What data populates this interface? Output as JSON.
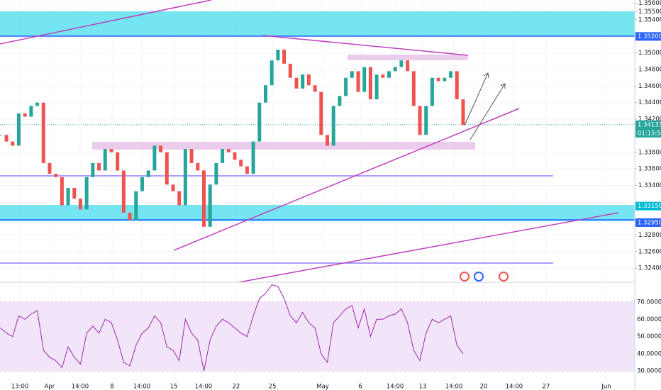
{
  "chart_data": {
    "type": "candlestick",
    "up_color": "#26a69a",
    "down_color": "#ef5350",
    "grid": true,
    "xlim": [
      -4.02,
      47.41
    ],
    "xticks": [
      {
        "value": -2.41,
        "label": "13:00"
      },
      {
        "value": 0,
        "label": "Apr"
      },
      {
        "value": 2.47,
        "label": "14:00"
      },
      {
        "value": 5.06,
        "label": "8"
      },
      {
        "value": 7.47,
        "label": "14:00"
      },
      {
        "value": 10.06,
        "label": "15"
      },
      {
        "value": 12.47,
        "label": "14:00"
      },
      {
        "value": 15.11,
        "label": "22"
      },
      {
        "value": 18.05,
        "label": "25"
      },
      {
        "value": 22.13,
        "label": "May"
      },
      {
        "value": 25.17,
        "label": "6"
      },
      {
        "value": 27.99,
        "label": "14:00"
      },
      {
        "value": 30.23,
        "label": "13"
      },
      {
        "value": 32.76,
        "label": "14:00"
      },
      {
        "value": 35.17,
        "label": "20"
      },
      {
        "value": 37.64,
        "label": "14:00"
      },
      {
        "value": 40.23,
        "label": "27"
      },
      {
        "value": 45.11,
        "label": "Jun"
      }
    ],
    "ylim": [
      1.3223,
      1.3564
    ],
    "yticks": [
      {
        "value": 1.356,
        "label": "1.35600"
      },
      {
        "value": 1.355,
        "label": "1.35500"
      },
      {
        "value": 1.354,
        "label": "1.35400"
      },
      {
        "value": 1.35,
        "label": "1.35000"
      },
      {
        "value": 1.348,
        "label": "1.34800"
      },
      {
        "value": 1.346,
        "label": "1.34600"
      },
      {
        "value": 1.344,
        "label": "1.34400"
      },
      {
        "value": 1.342,
        "label": "1.34200"
      },
      {
        "value": 1.338,
        "label": "1.33800"
      },
      {
        "value": 1.336,
        "label": "1.33600"
      },
      {
        "value": 1.334,
        "label": "1.33400"
      },
      {
        "value": 1.328,
        "label": "1.32800"
      },
      {
        "value": 1.326,
        "label": "1.32600"
      },
      {
        "value": 1.324,
        "label": "1.32400"
      }
    ],
    "levels": [
      {
        "value": 1.352,
        "label": "1.35200",
        "color": "#2962ff"
      },
      {
        "value": 1.3315,
        "label": "1.33150",
        "color": "#00bcd4"
      },
      {
        "value": 1.3295,
        "label": "1.32950",
        "color": "#2962ff"
      }
    ],
    "last": {
      "value": 1.34133,
      "label": "1.34133"
    },
    "countdown": "01:15:59",
    "x": [
      -4,
      -3.5,
      -3,
      -2.5,
      -2,
      -1.5,
      -1,
      -0.5,
      0,
      0.5,
      1,
      1.5,
      2,
      2.5,
      3,
      3.5,
      4,
      4.5,
      5,
      5.5,
      6,
      6.5,
      7,
      7.5,
      8,
      8.5,
      9,
      9.5,
      10,
      10.5,
      11,
      11.5,
      12,
      12.5,
      13,
      13.5,
      14,
      14.5,
      15,
      15.5,
      16,
      16.5,
      17,
      17.5,
      18,
      18.5,
      19,
      19.5,
      20,
      20.5,
      21,
      21.5,
      22,
      22.5,
      23,
      23.5,
      24,
      24.5,
      25,
      25.5,
      26,
      26.5,
      27,
      27.5,
      28,
      28.5,
      29,
      29.5,
      30,
      30.5,
      31,
      31.5,
      32,
      32.5,
      33,
      33.5
    ],
    "close": [
      1.3401,
      1.3393,
      1.3388,
      1.3427,
      1.3423,
      1.3436,
      1.344,
      1.3367,
      1.3354,
      1.335,
      1.3316,
      1.3337,
      1.3324,
      1.3311,
      1.335,
      1.3367,
      1.3358,
      1.3384,
      1.338,
      1.3358,
      1.3307,
      1.3298,
      1.3333,
      1.335,
      1.3358,
      1.3388,
      1.338,
      1.3341,
      1.3333,
      1.3316,
      1.3384,
      1.3367,
      1.3358,
      1.329,
      1.3341,
      1.3367,
      1.3384,
      1.338,
      1.3371,
      1.3363,
      1.3354,
      1.3393,
      1.344,
      1.3461,
      1.3491,
      1.3504,
      1.3487,
      1.347,
      1.3457,
      1.3474,
      1.3461,
      1.3453,
      1.3401,
      1.3388,
      1.3436,
      1.3448,
      1.347,
      1.3478,
      1.3453,
      1.3483,
      1.3444,
      1.3474,
      1.347,
      1.3478,
      1.3483,
      1.3491,
      1.3478,
      1.3436,
      1.3401,
      1.3436,
      1.347,
      1.3466,
      1.347,
      1.3478,
      1.3444,
      1.3413
    ],
    "rsi": {
      "ylim": [
        23.1,
        81.5
      ],
      "yticks": [
        {
          "value": 70,
          "label": "70.0000"
        },
        {
          "value": 60,
          "label": "60.0000"
        },
        {
          "value": 50,
          "label": "50.0000"
        },
        {
          "value": 40,
          "label": "40.0000"
        },
        {
          "value": 30,
          "label": "30.0000"
        }
      ],
      "color": "#9c27b0",
      "values": [
        55,
        52,
        50,
        62,
        60,
        63,
        65,
        42,
        38,
        36,
        32,
        44,
        38,
        34,
        52,
        56,
        52,
        60,
        58,
        48,
        35,
        33,
        45,
        52,
        55,
        62,
        58,
        44,
        42,
        36,
        60,
        52,
        48,
        30,
        48,
        56,
        60,
        58,
        55,
        52,
        50,
        62,
        72,
        75,
        80,
        79,
        72,
        62,
        58,
        64,
        58,
        55,
        40,
        35,
        58,
        62,
        66,
        68,
        55,
        66,
        50,
        60,
        60,
        62,
        63,
        66,
        58,
        42,
        36,
        52,
        60,
        58,
        60,
        62,
        45,
        40
      ]
    }
  }
}
